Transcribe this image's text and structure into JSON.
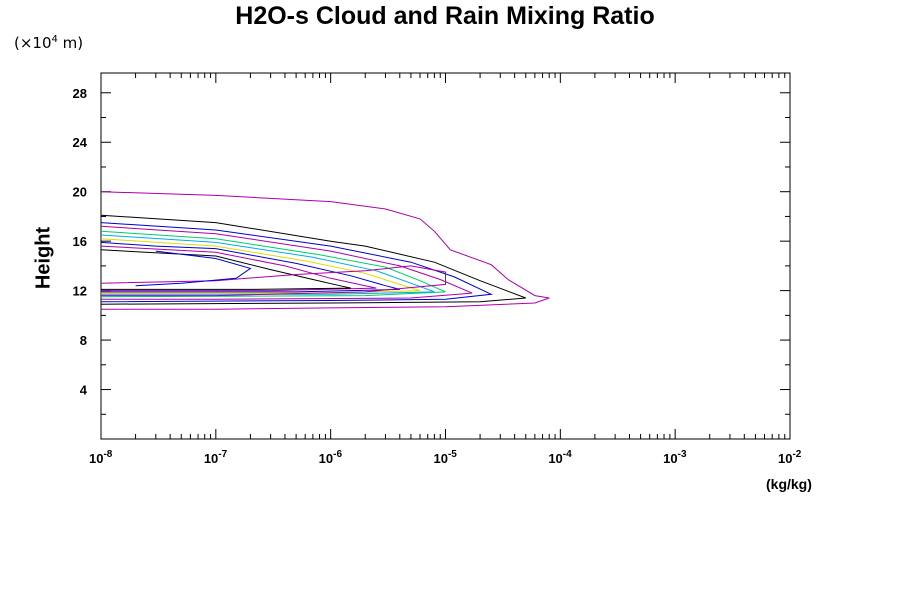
{
  "chart_data": {
    "type": "line",
    "title": "H2O-s Cloud and Rain Mixing Ratio",
    "scale_note_prefix": "(×10",
    "scale_note_exp": "4",
    "scale_note_suffix": " m)",
    "ylabel": "Height",
    "xunit": "(kg/kg)",
    "xscale": "log",
    "xlim": [
      1e-08,
      0.01
    ],
    "ylim": [
      0,
      29.6
    ],
    "xticks": [
      {
        "base": "10",
        "exp": "-8"
      },
      {
        "base": "10",
        "exp": "-7"
      },
      {
        "base": "10",
        "exp": "-6"
      },
      {
        "base": "10",
        "exp": "-5"
      },
      {
        "base": "10",
        "exp": "-4"
      },
      {
        "base": "10",
        "exp": "-3"
      },
      {
        "base": "10",
        "exp": "-2"
      }
    ],
    "yticks": [
      "4",
      "8",
      "12",
      "16",
      "20",
      "24",
      "28"
    ],
    "series": [
      {
        "color": "#aa00aa",
        "points": [
          [
            1e-08,
            20
          ],
          [
            1e-07,
            19.7
          ],
          [
            1e-06,
            19.2
          ],
          [
            3e-06,
            18.6
          ],
          [
            6e-06,
            17.8
          ],
          [
            8e-06,
            16.8
          ],
          [
            1.1e-05,
            15.3
          ],
          [
            2.5e-05,
            14.1
          ],
          [
            3.5e-05,
            12.9
          ],
          [
            6e-05,
            11.6
          ],
          [
            8e-05,
            11.4
          ],
          [
            6e-05,
            11.0
          ],
          [
            1e-05,
            10.7
          ],
          [
            1e-06,
            10.6
          ],
          [
            1e-07,
            10.5
          ],
          [
            1e-08,
            10.5
          ]
        ]
      },
      {
        "color": "#000000",
        "points": [
          [
            1e-08,
            18.1
          ],
          [
            1e-07,
            17.5
          ],
          [
            1e-06,
            16.0
          ],
          [
            2e-06,
            15.6
          ],
          [
            8e-06,
            14.3
          ],
          [
            2e-05,
            12.8
          ],
          [
            5e-05,
            11.4
          ],
          [
            2e-05,
            11.1
          ],
          [
            1e-06,
            11.0
          ],
          [
            1e-08,
            10.9
          ]
        ]
      },
      {
        "color": "#0000cc",
        "points": [
          [
            1e-08,
            17.5
          ],
          [
            1e-07,
            16.9
          ],
          [
            1e-06,
            15.6
          ],
          [
            5e-06,
            14.3
          ],
          [
            1.2e-05,
            13.1
          ],
          [
            2.5e-05,
            11.7
          ],
          [
            1e-05,
            11.3
          ],
          [
            1e-06,
            11.2
          ],
          [
            1e-08,
            11.1
          ]
        ]
      },
      {
        "color": "#aa00aa",
        "points": [
          [
            1e-08,
            17.2
          ],
          [
            1e-07,
            16.6
          ],
          [
            1e-06,
            15.2
          ],
          [
            4e-06,
            14.0
          ],
          [
            9e-06,
            12.9
          ],
          [
            1.7e-05,
            11.8
          ],
          [
            5e-06,
            11.4
          ],
          [
            1e-07,
            11.3
          ],
          [
            1e-08,
            11.3
          ]
        ]
      },
      {
        "color": "#00cc66",
        "points": [
          [
            1e-08,
            16.8
          ],
          [
            1e-07,
            16.2
          ],
          [
            8e-07,
            14.9
          ],
          [
            3e-06,
            13.9
          ],
          [
            6e-06,
            12.8
          ],
          [
            1e-05,
            11.9
          ],
          [
            2e-06,
            11.6
          ],
          [
            1e-08,
            11.5
          ]
        ]
      },
      {
        "color": "#00aaee",
        "points": [
          [
            1e-08,
            16.5
          ],
          [
            1e-07,
            15.9
          ],
          [
            7e-07,
            14.7
          ],
          [
            2.5e-06,
            13.6
          ],
          [
            5e-06,
            12.6
          ],
          [
            8e-06,
            11.9
          ],
          [
            1e-06,
            11.7
          ],
          [
            1e-08,
            11.7
          ]
        ]
      },
      {
        "color": "#dddd00",
        "points": [
          [
            1e-08,
            16.2
          ],
          [
            1e-07,
            15.6
          ],
          [
            6e-07,
            14.4
          ],
          [
            2e-06,
            13.4
          ],
          [
            4e-06,
            12.5
          ],
          [
            6e-06,
            12.0
          ],
          [
            1e-06,
            11.8
          ],
          [
            1e-08,
            11.8
          ]
        ]
      },
      {
        "color": "#0000cc",
        "points": [
          [
            1e-08,
            15.9
          ],
          [
            3e-08,
            15.6
          ],
          [
            1e-07,
            15.4
          ],
          [
            5e-07,
            14.2
          ],
          [
            1.5e-06,
            13.2
          ],
          [
            3e-06,
            12.4
          ],
          [
            4e-06,
            12.1
          ],
          [
            5e-07,
            11.9
          ],
          [
            1e-08,
            11.9
          ]
        ]
      },
      {
        "color": "#aa00aa",
        "points": [
          [
            1e-08,
            15.6
          ],
          [
            1e-07,
            15.1
          ],
          [
            4e-07,
            14.0
          ],
          [
            1e-06,
            13.0
          ],
          [
            2e-06,
            12.4
          ],
          [
            2.5e-06,
            12.2
          ],
          [
            3e-07,
            12.0
          ],
          [
            1e-08,
            12.0
          ]
        ]
      },
      {
        "color": "#000000",
        "points": [
          [
            1e-08,
            15.3
          ],
          [
            1e-07,
            14.8
          ],
          [
            3e-07,
            13.7
          ],
          [
            7e-07,
            12.9
          ],
          [
            1.2e-06,
            12.4
          ],
          [
            1.5e-06,
            12.2
          ],
          [
            2e-07,
            12.1
          ],
          [
            1e-08,
            12.1
          ]
        ]
      },
      {
        "color": "#aa00aa",
        "points": [
          [
            1e-08,
            12.6
          ],
          [
            1e-07,
            12.8
          ],
          [
            5e-07,
            13.3
          ],
          [
            2e-06,
            13.6
          ],
          [
            5e-06,
            14.0
          ],
          [
            1e-05,
            13.5
          ],
          [
            1e-05,
            12.5
          ],
          [
            2e-06,
            11.9
          ],
          [
            1e-07,
            11.6
          ],
          [
            1e-08,
            11.6
          ]
        ]
      },
      {
        "color": "#0000cc",
        "points": [
          [
            3e-08,
            15.2
          ],
          [
            1e-07,
            14.6
          ],
          [
            2e-07,
            13.8
          ],
          [
            1.5e-07,
            13.0
          ],
          [
            5e-08,
            12.6
          ],
          [
            2e-08,
            12.4
          ]
        ]
      }
    ]
  }
}
